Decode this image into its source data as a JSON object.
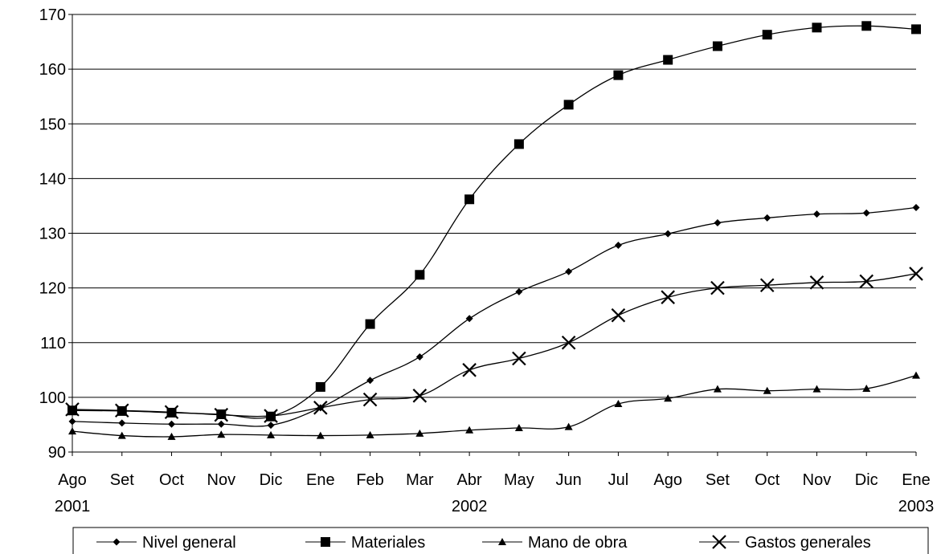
{
  "chart_data": {
    "type": "line",
    "title": "",
    "xlabel": "",
    "ylabel": "",
    "ylim": [
      90,
      170
    ],
    "yticks": [
      90,
      100,
      110,
      120,
      130,
      140,
      150,
      160,
      170
    ],
    "categories": [
      "Ago",
      "Set",
      "Oct",
      "Nov",
      "Dic",
      "Ene",
      "Feb",
      "Mar",
      "Abr",
      "May",
      "Jun",
      "Jul",
      "Ago",
      "Set",
      "Oct",
      "Nov",
      "Dic",
      "Ene"
    ],
    "year_labels": [
      {
        "index": 0,
        "label": "2001"
      },
      {
        "index": 8,
        "label": "2002"
      },
      {
        "index": 17,
        "label": "2003"
      }
    ],
    "grid": "horizontal",
    "legend_position": "bottom",
    "series": [
      {
        "name": "Nivel general",
        "marker": "diamond",
        "color": "#000000",
        "values": [
          95.6,
          95.3,
          95.1,
          95.1,
          94.9,
          98.1,
          103.1,
          107.4,
          114.4,
          119.3,
          123.0,
          127.8,
          129.9,
          131.9,
          132.8,
          133.5,
          133.7,
          134.7
        ]
      },
      {
        "name": "Materiales",
        "marker": "square",
        "color": "#000000",
        "values": [
          97.6,
          97.5,
          97.2,
          96.9,
          96.5,
          101.9,
          113.4,
          122.4,
          136.2,
          146.3,
          153.5,
          158.9,
          161.7,
          164.2,
          166.3,
          167.6,
          167.9,
          167.3
        ]
      },
      {
        "name": "Mano de obra",
        "marker": "triangle",
        "color": "#000000",
        "values": [
          93.8,
          93.0,
          92.8,
          93.2,
          93.1,
          93.0,
          93.1,
          93.4,
          94.0,
          94.4,
          94.6,
          98.8,
          99.8,
          101.5,
          101.2,
          101.5,
          101.6,
          104.0
        ]
      },
      {
        "name": "Gastos generales",
        "marker": "x",
        "color": "#000000",
        "values": [
          97.8,
          97.6,
          97.3,
          96.8,
          96.6,
          98.1,
          99.6,
          100.3,
          105.0,
          107.1,
          110.0,
          115.0,
          118.3,
          120.0,
          120.5,
          121.0,
          121.2,
          122.6
        ]
      }
    ]
  }
}
